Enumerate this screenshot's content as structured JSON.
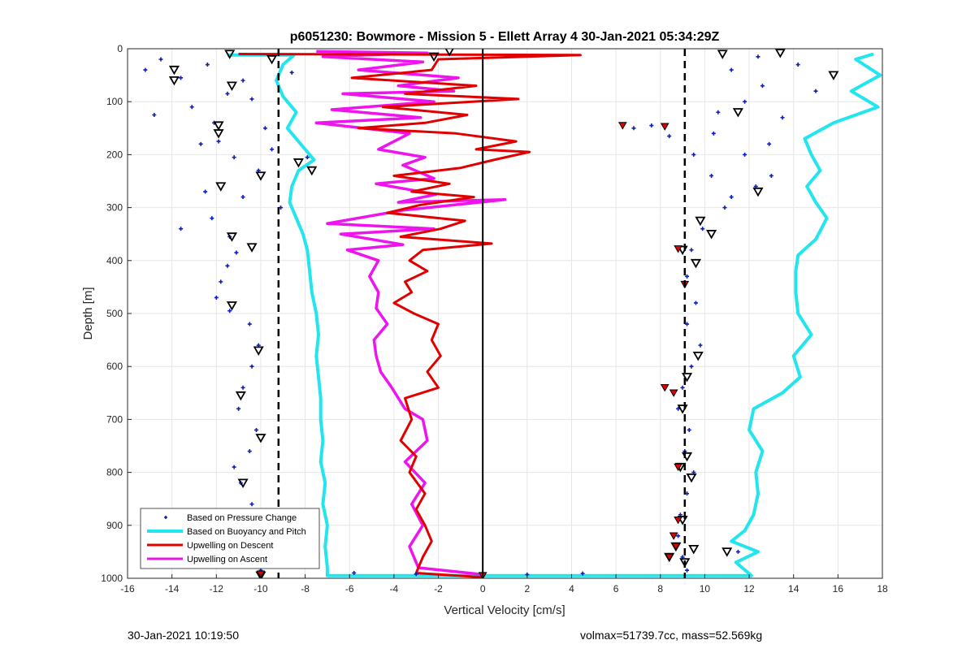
{
  "footer": {
    "timestamp": "30-Jan-2021 10:19:50",
    "info": "volmax=51739.7cc, mass=52.569kg"
  },
  "chart_data": {
    "type": "scatter",
    "title": "p6051230: Bowmore - Mission 5 - Ellett Array 4 30-Jan-2021 05:34:29Z",
    "xlabel": "Vertical Velocity [cm/s]",
    "ylabel": "Depth [m]",
    "xlim": [
      -16,
      18
    ],
    "ylim": [
      0,
      1000
    ],
    "y_reversed": true,
    "grid": true,
    "legend_position": "bottom-left",
    "xticks": [
      -16,
      -14,
      -12,
      -10,
      -8,
      -6,
      -4,
      -2,
      0,
      2,
      4,
      6,
      8,
      10,
      12,
      14,
      16,
      18
    ],
    "xtick_labels": [
      "-16",
      "-14",
      "-12",
      "-10",
      "-8",
      "-6",
      "-4",
      "-2",
      "0",
      "2",
      "4",
      "6",
      "8",
      "10",
      "12",
      "14",
      "16",
      "18"
    ],
    "yticks": [
      0,
      100,
      200,
      300,
      400,
      500,
      600,
      700,
      800,
      900,
      1000
    ],
    "ytick_labels": [
      "0",
      "100",
      "200",
      "300",
      "400",
      "500",
      "600",
      "700",
      "800",
      "900",
      "1000"
    ],
    "colors": {
      "pressure": "#0a1fbf",
      "buoyancy": "#22e5ee",
      "descent": "#e00000",
      "ascent": "#ee14ee",
      "reference": "#000000"
    },
    "reference_lines": [
      {
        "x": 0,
        "style": "solid"
      },
      {
        "x": -9.2,
        "style": "dashed"
      },
      {
        "x": 9.1,
        "style": "dashed"
      }
    ],
    "series": [
      {
        "name": "Based on Pressure Change",
        "style": "dots",
        "color": "#0a1fbf",
        "points": [
          [
            -14.5,
            20
          ],
          [
            -15.2,
            40
          ],
          [
            -13.6,
            55
          ],
          [
            -12.4,
            30
          ],
          [
            -11.5,
            85
          ],
          [
            -13.1,
            110
          ],
          [
            -14.8,
            125
          ],
          [
            -12.1,
            140
          ],
          [
            -10.8,
            60
          ],
          [
            -11.9,
            175
          ],
          [
            -10.4,
            95
          ],
          [
            -12.7,
            180
          ],
          [
            -11.2,
            205
          ],
          [
            -9.8,
            150
          ],
          [
            -10.1,
            230
          ],
          [
            -9.5,
            190
          ],
          [
            -8.6,
            45
          ],
          [
            -7.9,
            205
          ],
          [
            -9.1,
            300
          ],
          [
            -12.5,
            270
          ],
          [
            -12.2,
            320
          ],
          [
            -10.8,
            280
          ],
          [
            -13.6,
            340
          ],
          [
            -11.4,
            355
          ],
          [
            -11.1,
            385
          ],
          [
            -11.5,
            410
          ],
          [
            -11.8,
            440
          ],
          [
            -12.0,
            470
          ],
          [
            -11.4,
            495
          ],
          [
            -10.5,
            520
          ],
          [
            -10.1,
            560
          ],
          [
            -10.4,
            600
          ],
          [
            -10.8,
            640
          ],
          [
            -11.0,
            680
          ],
          [
            -10.2,
            720
          ],
          [
            -10.5,
            760
          ],
          [
            -11.2,
            790
          ],
          [
            -10.9,
            820
          ],
          [
            -10.4,
            860
          ],
          [
            -9.8,
            900
          ],
          [
            -9.6,
            940
          ],
          [
            -10.0,
            985
          ],
          [
            -5.8,
            990
          ],
          [
            -3.0,
            992
          ],
          [
            2.0,
            993
          ],
          [
            4.5,
            991
          ],
          [
            6.8,
            150
          ],
          [
            7.6,
            145
          ],
          [
            8.4,
            165
          ],
          [
            9.5,
            200
          ],
          [
            10.3,
            240
          ],
          [
            11.2,
            280
          ],
          [
            12.3,
            260
          ],
          [
            10.9,
            300
          ],
          [
            9.9,
            340
          ],
          [
            9.4,
            380
          ],
          [
            9.2,
            430
          ],
          [
            9.6,
            480
          ],
          [
            9.2,
            520
          ],
          [
            9.8,
            560
          ],
          [
            9.4,
            600
          ],
          [
            9.0,
            640
          ],
          [
            8.8,
            680
          ],
          [
            9.3,
            720
          ],
          [
            9.1,
            760
          ],
          [
            9.5,
            800
          ],
          [
            9.2,
            840
          ],
          [
            8.9,
            880
          ],
          [
            8.8,
            920
          ],
          [
            9.0,
            960
          ],
          [
            9.2,
            985
          ],
          [
            11.2,
            40
          ],
          [
            12.6,
            70
          ],
          [
            11.8,
            100
          ],
          [
            13.5,
            130
          ],
          [
            10.4,
            160
          ],
          [
            11.8,
            200
          ],
          [
            12.9,
            180
          ],
          [
            13.0,
            240
          ],
          [
            14.2,
            30
          ],
          [
            12.4,
            15
          ],
          [
            15.0,
            80
          ],
          [
            10.6,
            120
          ],
          [
            11.5,
            950
          ]
        ]
      },
      {
        "name": "Based on Buoyancy and Pitch",
        "style": "line",
        "color": "#22e5ee",
        "left_branch": [
          [
            -11.5,
            12
          ],
          [
            -8.5,
            12
          ],
          [
            -9.0,
            30
          ],
          [
            -9.3,
            60
          ],
          [
            -9.0,
            90
          ],
          [
            -8.4,
            120
          ],
          [
            -8.8,
            150
          ],
          [
            -8.2,
            180
          ],
          [
            -7.6,
            210
          ],
          [
            -8.3,
            230
          ],
          [
            -8.6,
            260
          ],
          [
            -8.7,
            290
          ],
          [
            -8.4,
            320
          ],
          [
            -8.1,
            350
          ],
          [
            -7.9,
            380
          ],
          [
            -7.8,
            420
          ],
          [
            -7.7,
            460
          ],
          [
            -7.5,
            500
          ],
          [
            -7.4,
            540
          ],
          [
            -7.5,
            580
          ],
          [
            -7.4,
            620
          ],
          [
            -7.3,
            660
          ],
          [
            -7.3,
            700
          ],
          [
            -7.2,
            740
          ],
          [
            -7.3,
            780
          ],
          [
            -7.1,
            820
          ],
          [
            -7.2,
            860
          ],
          [
            -7.0,
            900
          ],
          [
            -7.1,
            940
          ],
          [
            -7.0,
            980
          ],
          [
            -7.0,
            995
          ],
          [
            0,
            995
          ]
        ],
        "right_branch": [
          [
            0,
            995
          ],
          [
            12.1,
            995
          ],
          [
            11.4,
            970
          ],
          [
            12.4,
            950
          ],
          [
            11.2,
            930
          ],
          [
            11.8,
            910
          ],
          [
            12.2,
            880
          ],
          [
            12.4,
            840
          ],
          [
            12.3,
            800
          ],
          [
            12.6,
            760
          ],
          [
            12.0,
            720
          ],
          [
            12.2,
            680
          ],
          [
            13.5,
            650
          ],
          [
            14.3,
            620
          ],
          [
            14.0,
            580
          ],
          [
            14.8,
            540
          ],
          [
            14.2,
            500
          ],
          [
            14.1,
            460
          ],
          [
            14.1,
            420
          ],
          [
            14.2,
            390
          ],
          [
            15.0,
            360
          ],
          [
            15.5,
            320
          ],
          [
            15.0,
            290
          ],
          [
            14.6,
            260
          ],
          [
            15.2,
            230
          ],
          [
            14.8,
            200
          ],
          [
            14.5,
            170
          ],
          [
            15.8,
            140
          ],
          [
            17.8,
            110
          ],
          [
            16.6,
            80
          ],
          [
            17.9,
            50
          ],
          [
            16.8,
            20
          ],
          [
            17.6,
            10
          ]
        ]
      },
      {
        "name": "Upwelling on Descent",
        "style": "line",
        "color": "#e00000",
        "points": [
          [
            -11.0,
            10
          ],
          [
            4.4,
            12
          ],
          [
            -2.0,
            20
          ],
          [
            -2.3,
            40
          ],
          [
            -5.9,
            55
          ],
          [
            -0.3,
            70
          ],
          [
            -3.5,
            85
          ],
          [
            1.6,
            95
          ],
          [
            -4.5,
            110
          ],
          [
            -0.7,
            125
          ],
          [
            -2.6,
            140
          ],
          [
            -5.6,
            150
          ],
          [
            -1.2,
            160
          ],
          [
            1.5,
            175
          ],
          [
            -0.3,
            190
          ],
          [
            2.1,
            195
          ],
          [
            0.5,
            210
          ],
          [
            -1.0,
            225
          ],
          [
            -4.0,
            240
          ],
          [
            -1.5,
            255
          ],
          [
            -3.2,
            270
          ],
          [
            -0.4,
            280
          ],
          [
            -2.8,
            295
          ],
          [
            -4.3,
            310
          ],
          [
            -0.8,
            325
          ],
          [
            -1.9,
            340
          ],
          [
            -3.7,
            355
          ],
          [
            0.4,
            368
          ],
          [
            -2.7,
            380
          ],
          [
            -3.3,
            400
          ],
          [
            -2.5,
            420
          ],
          [
            -3.5,
            440
          ],
          [
            -3.2,
            460
          ],
          [
            -4.0,
            480
          ],
          [
            -3.1,
            500
          ],
          [
            -2.0,
            520
          ],
          [
            -2.3,
            550
          ],
          [
            -1.9,
            580
          ],
          [
            -2.5,
            610
          ],
          [
            -2.0,
            640
          ],
          [
            -3.5,
            660
          ],
          [
            -3.2,
            700
          ],
          [
            -3.7,
            740
          ],
          [
            -3.0,
            770
          ],
          [
            -3.3,
            800
          ],
          [
            -2.6,
            840
          ],
          [
            -3.0,
            870
          ],
          [
            -2.6,
            900
          ],
          [
            -2.3,
            930
          ],
          [
            -2.7,
            960
          ],
          [
            -3.0,
            990
          ],
          [
            0,
            998
          ]
        ]
      },
      {
        "name": "Upwelling on Ascent",
        "style": "line",
        "color": "#ee14ee",
        "points": [
          [
            -7.5,
            5
          ],
          [
            -2.5,
            8
          ],
          [
            -7.2,
            15
          ],
          [
            -2.7,
            25
          ],
          [
            -5.6,
            40
          ],
          [
            -1.1,
            55
          ],
          [
            -3.8,
            70
          ],
          [
            -1.3,
            80
          ],
          [
            -6.3,
            85
          ],
          [
            -2.2,
            100
          ],
          [
            -6.8,
            115
          ],
          [
            -2.8,
            130
          ],
          [
            -7.5,
            140
          ],
          [
            -3.3,
            160
          ],
          [
            -4.7,
            190
          ],
          [
            -2.6,
            205
          ],
          [
            -3.6,
            220
          ],
          [
            -2.2,
            245
          ],
          [
            -4.8,
            255
          ],
          [
            -2.1,
            275
          ],
          [
            -3.8,
            290
          ],
          [
            1.0,
            285
          ],
          [
            -3.6,
            305
          ],
          [
            -7.0,
            330
          ],
          [
            -2.2,
            340
          ],
          [
            -6.4,
            350
          ],
          [
            -3.6,
            370
          ],
          [
            -6.1,
            380
          ],
          [
            -4.7,
            400
          ],
          [
            -5.1,
            430
          ],
          [
            -4.7,
            460
          ],
          [
            -4.8,
            490
          ],
          [
            -4.3,
            520
          ],
          [
            -4.9,
            550
          ],
          [
            -4.8,
            580
          ],
          [
            -4.6,
            610
          ],
          [
            -4.1,
            640
          ],
          [
            -3.5,
            680
          ],
          [
            -2.7,
            700
          ],
          [
            -2.5,
            740
          ],
          [
            -3.5,
            780
          ],
          [
            -2.6,
            820
          ],
          [
            -3.2,
            860
          ],
          [
            -2.7,
            900
          ],
          [
            -3.3,
            940
          ],
          [
            -2.9,
            980
          ],
          [
            0,
            993
          ]
        ]
      }
    ],
    "markers": {
      "hollow_triangles": [
        [
          -11.4,
          10
        ],
        [
          -9.5,
          20
        ],
        [
          -13.9,
          40
        ],
        [
          -13.9,
          60
        ],
        [
          -11.3,
          70
        ],
        [
          -2.2,
          15
        ],
        [
          -1.5,
          5
        ],
        [
          -11.9,
          145
        ],
        [
          -11.9,
          160
        ],
        [
          -8.3,
          215
        ],
        [
          -7.7,
          230
        ],
        [
          -10.0,
          240
        ],
        [
          -11.8,
          260
        ],
        [
          -11.3,
          355
        ],
        [
          -10.4,
          375
        ],
        [
          -11.3,
          485
        ],
        [
          -10.1,
          570
        ],
        [
          -10.9,
          655
        ],
        [
          -10.0,
          735
        ],
        [
          -10.8,
          820
        ],
        [
          -9.7,
          920
        ],
        [
          -9.4,
          945
        ],
        [
          10.8,
          10
        ],
        [
          13.4,
          8
        ],
        [
          15.8,
          50
        ],
        [
          11.5,
          120
        ],
        [
          12.4,
          270
        ],
        [
          9.8,
          325
        ],
        [
          10.3,
          350
        ],
        [
          9.0,
          380
        ],
        [
          9.6,
          405
        ],
        [
          9.7,
          580
        ],
        [
          9.2,
          620
        ],
        [
          9.0,
          680
        ],
        [
          8.9,
          790
        ],
        [
          9.2,
          770
        ],
        [
          9.4,
          810
        ],
        [
          9.0,
          890
        ],
        [
          8.7,
          940
        ],
        [
          9.1,
          970
        ],
        [
          8.4,
          960
        ],
        [
          11.0,
          950
        ],
        [
          -10.0,
          995
        ],
        [
          9.5,
          945
        ]
      ],
      "filled_triangles": [
        [
          6.3,
          145
        ],
        [
          8.2,
          147
        ],
        [
          8.8,
          378
        ],
        [
          9.1,
          445
        ],
        [
          8.2,
          640
        ],
        [
          8.6,
          650
        ],
        [
          8.8,
          790
        ],
        [
          8.8,
          890
        ],
        [
          8.6,
          920
        ],
        [
          8.7,
          940
        ],
        [
          8.4,
          960
        ],
        [
          0,
          995
        ],
        [
          -10.0,
          992
        ]
      ]
    }
  }
}
